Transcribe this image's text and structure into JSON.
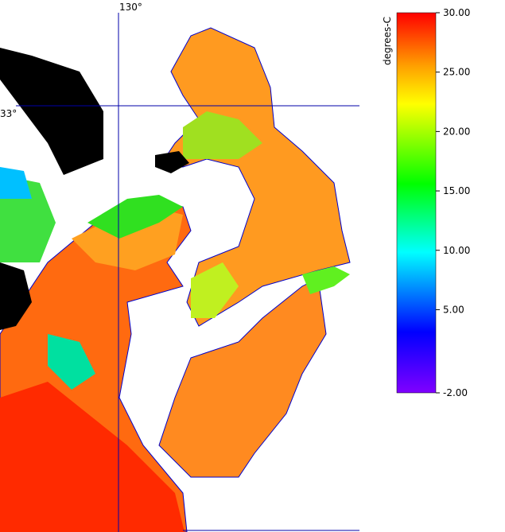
{
  "map": {
    "grid_labels": {
      "longitude": "130°",
      "latitude": "33°"
    },
    "colorbar": {
      "label": "degrees-C",
      "lim": [
        -2,
        30
      ],
      "ticks": [
        {
          "value": 30,
          "label": "30.00"
        },
        {
          "value": 25,
          "label": "25.00"
        },
        {
          "value": 20,
          "label": "20.00"
        },
        {
          "value": 15,
          "label": "15.00"
        },
        {
          "value": 10,
          "label": "10.00"
        },
        {
          "value": 5,
          "label": "5.00"
        },
        {
          "value": -2,
          "label": "-2.00"
        }
      ]
    }
  }
}
